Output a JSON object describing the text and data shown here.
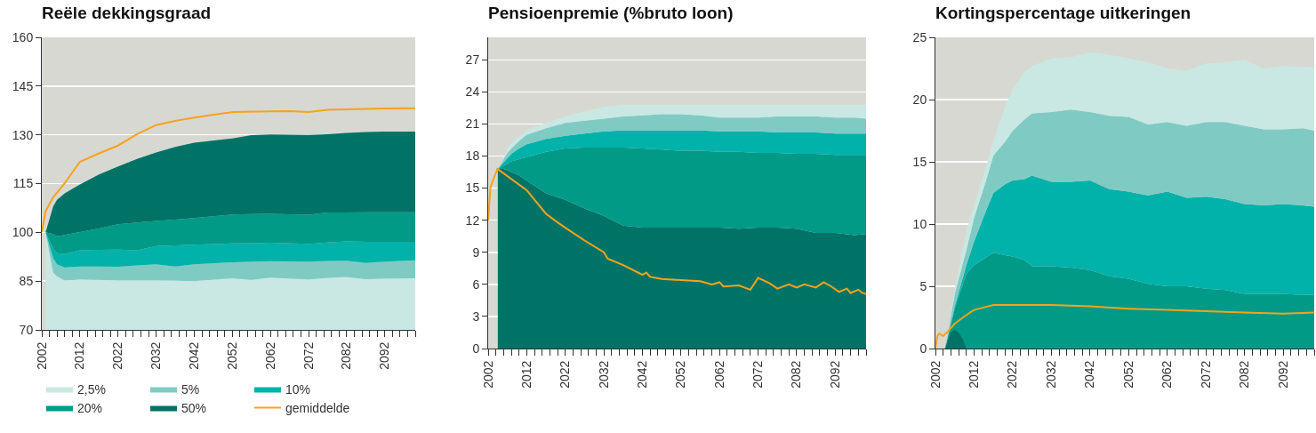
{
  "chart_data": [
    {
      "type": "area",
      "title": "Reële dekkingsgraad",
      "legend": "bottom left",
      "grid": "y",
      "xlim": [
        2002,
        2100
      ],
      "ylim": [
        70,
        160
      ],
      "yticks": [
        70,
        85,
        100,
        115,
        130,
        145,
        160
      ],
      "xticks": [
        2002,
        {
          "value": 2004,
          "label": null
        },
        {
          "value": 2006,
          "label": null
        },
        {
          "value": 2008,
          "label": null
        },
        {
          "value": 2010,
          "label": null
        },
        2012,
        {
          "value": 2014,
          "label": null
        },
        {
          "value": 2016,
          "label": null
        },
        {
          "value": 2018,
          "label": null
        },
        {
          "value": 2020,
          "label": null
        },
        2022,
        {
          "value": 2024,
          "label": null
        },
        {
          "value": 2026,
          "label": null
        },
        {
          "value": 2028,
          "label": null
        },
        {
          "value": 2030,
          "label": null
        },
        2032,
        {
          "value": 2034,
          "label": null
        },
        {
          "value": 2036,
          "label": null
        },
        {
          "value": 2038,
          "label": null
        },
        {
          "value": 2040,
          "label": null
        },
        2042,
        {
          "value": 2044,
          "label": null
        },
        {
          "value": 2046,
          "label": null
        },
        {
          "value": 2048,
          "label": null
        },
        {
          "value": 2050,
          "label": null
        },
        2052,
        {
          "value": 2054,
          "label": null
        },
        {
          "value": 2056,
          "label": null
        },
        {
          "value": 2058,
          "label": null
        },
        {
          "value": 2060,
          "label": null
        },
        2062,
        {
          "value": 2064,
          "label": null
        },
        {
          "value": 2066,
          "label": null
        },
        {
          "value": 2068,
          "label": null
        },
        {
          "value": 2070,
          "label": null
        },
        2072,
        {
          "value": 2074,
          "label": null
        },
        {
          "value": 2076,
          "label": null
        },
        {
          "value": 2078,
          "label": null
        },
        {
          "value": 2080,
          "label": null
        },
        2082,
        {
          "value": 2084,
          "label": null
        },
        {
          "value": 2086,
          "label": null
        },
        {
          "value": 2088,
          "label": null
        },
        {
          "value": 2090,
          "label": null
        },
        2092,
        {
          "value": 2094,
          "label": null
        },
        {
          "value": 2096,
          "label": null
        },
        {
          "value": 2098,
          "label": null
        },
        {
          "value": 2100,
          "label": null
        }
      ],
      "x": [
        2003,
        2005,
        2006,
        2008,
        2012,
        2017,
        2022,
        2027,
        2032,
        2037,
        2042,
        2052,
        2057,
        2062,
        2072,
        2077,
        2082,
        2087,
        2092,
        2100
      ],
      "series": [
        {
          "name": "2,5%",
          "color": "#c9e8e3",
          "values": [
            100,
            87.6,
            86.5,
            85.2,
            85.5,
            85.4,
            85.2,
            85.2,
            85.2,
            85.1,
            85,
            85.9,
            85.4,
            86.1,
            85.5,
            86,
            86.3,
            85.6,
            85.8,
            85.9
          ]
        },
        {
          "name": "5%",
          "color": "#7fcbc4",
          "values": [
            100,
            92,
            90.2,
            89.2,
            89.5,
            89.5,
            89.4,
            89.8,
            90.2,
            89.5,
            90.2,
            90.8,
            91,
            91.1,
            91,
            91.2,
            91.3,
            90.6,
            91,
            91.4
          ]
        },
        {
          "name": "10%",
          "color": "#00b2a9",
          "values": [
            100,
            95,
            93.6,
            93.4,
            94.5,
            94.6,
            94.7,
            94.5,
            95.8,
            96,
            96.2,
            96.6,
            96.7,
            96.8,
            96.5,
            96.9,
            97.2,
            97.1,
            97.1,
            97.1
          ]
        },
        {
          "name": "20%",
          "color": "#009a87",
          "values": [
            100,
            99.5,
            98.8,
            99.2,
            100.1,
            101.2,
            102.5,
            103,
            103.5,
            103.9,
            104.4,
            105.5,
            105.6,
            105.7,
            105.4,
            106.1,
            106.1,
            106.2,
            106.2,
            106.2
          ]
        },
        {
          "name": "50%",
          "color": "#007367",
          "values": [
            100,
            108,
            110,
            112,
            114.7,
            117.8,
            120.3,
            122.6,
            124.6,
            126.3,
            127.6,
            128.9,
            129.9,
            130.1,
            130,
            130.2,
            130.6,
            130.9,
            131,
            131
          ]
        },
        {
          "name": "gemiddelde",
          "type": "line",
          "color": "#f5a31a",
          "x": [
            2002,
            2003,
            2005,
            2008,
            2012,
            2017,
            2022,
            2027,
            2032,
            2037,
            2042,
            2052,
            2062,
            2067,
            2072,
            2077,
            2092,
            2100
          ],
          "values": [
            100,
            106.5,
            110.8,
            115.1,
            121.7,
            124.3,
            126.7,
            130.2,
            133,
            134.3,
            135.3,
            137,
            137.2,
            137.3,
            137,
            137.7,
            138.1,
            138.2
          ]
        }
      ]
    },
    {
      "type": "area",
      "title": "Pensioenpremie (%bruto loon)",
      "grid": "y",
      "xlim": [
        2002,
        2100
      ],
      "ylim": [
        0,
        29.1
      ],
      "yticks": [
        0,
        3,
        6,
        9,
        12,
        15,
        18,
        21,
        24,
        27
      ],
      "xticks": [
        2002,
        {
          "value": 2004,
          "label": null
        },
        {
          "value": 2006,
          "label": null
        },
        {
          "value": 2008,
          "label": null
        },
        {
          "value": 2010,
          "label": null
        },
        2012,
        {
          "value": 2014,
          "label": null
        },
        {
          "value": 2016,
          "label": null
        },
        {
          "value": 2018,
          "label": null
        },
        {
          "value": 2020,
          "label": null
        },
        2022,
        {
          "value": 2024,
          "label": null
        },
        {
          "value": 2026,
          "label": null
        },
        {
          "value": 2028,
          "label": null
        },
        {
          "value": 2030,
          "label": null
        },
        2032,
        {
          "value": 2034,
          "label": null
        },
        {
          "value": 2036,
          "label": null
        },
        {
          "value": 2038,
          "label": null
        },
        {
          "value": 2040,
          "label": null
        },
        2042,
        {
          "value": 2044,
          "label": null
        },
        {
          "value": 2046,
          "label": null
        },
        {
          "value": 2048,
          "label": null
        },
        {
          "value": 2050,
          "label": null
        },
        2052,
        {
          "value": 2054,
          "label": null
        },
        {
          "value": 2056,
          "label": null
        },
        {
          "value": 2058,
          "label": null
        },
        {
          "value": 2060,
          "label": null
        },
        2062,
        {
          "value": 2064,
          "label": null
        },
        {
          "value": 2066,
          "label": null
        },
        {
          "value": 2068,
          "label": null
        },
        {
          "value": 2070,
          "label": null
        },
        2072,
        {
          "value": 2074,
          "label": null
        },
        {
          "value": 2076,
          "label": null
        },
        {
          "value": 2078,
          "label": null
        },
        {
          "value": 2080,
          "label": null
        },
        2082,
        {
          "value": 2084,
          "label": null
        },
        {
          "value": 2086,
          "label": null
        },
        {
          "value": 2088,
          "label": null
        },
        {
          "value": 2090,
          "label": null
        },
        2092,
        {
          "value": 2094,
          "label": null
        },
        {
          "value": 2096,
          "label": null
        },
        {
          "value": 2098,
          "label": null
        },
        {
          "value": 2100,
          "label": null
        }
      ],
      "x": [
        2004.5,
        2006,
        2007,
        2008,
        2010,
        2012,
        2017,
        2022,
        2027,
        2032,
        2037,
        2042,
        2047,
        2052,
        2057,
        2062,
        2067,
        2072,
        2077,
        2082,
        2087,
        2092,
        2097,
        2100
      ],
      "series": [
        {
          "color": "#007367",
          "values": [
            16.8,
            16.8,
            16.7,
            16.5,
            16.2,
            15.7,
            14.5,
            13.9,
            13.1,
            12.4,
            11.5,
            11.3,
            11.3,
            11.3,
            11.3,
            11.3,
            11.2,
            11.3,
            11.3,
            11.2,
            10.8,
            10.8,
            10.6,
            10.7
          ]
        },
        {
          "color": "#009a87",
          "values": [
            16.8,
            17.1,
            17.3,
            17.5,
            17.7,
            17.9,
            18.4,
            18.7,
            18.8,
            18.8,
            18.8,
            18.7,
            18.6,
            18.5,
            18.5,
            18.4,
            18.4,
            18.3,
            18.3,
            18.2,
            18.2,
            18.1,
            18.1,
            18.1
          ]
        },
        {
          "color": "#00b2a9",
          "values": [
            16.8,
            17.4,
            17.8,
            18.2,
            18.7,
            19.1,
            19.6,
            19.9,
            20.1,
            20.3,
            20.4,
            20.4,
            20.4,
            20.4,
            20.4,
            20.3,
            20.3,
            20.3,
            20.2,
            20.2,
            20.2,
            20.1,
            20.1,
            20.1
          ]
        },
        {
          "color": "#7fcbc4",
          "values": [
            16.8,
            17.7,
            18.3,
            18.7,
            19.4,
            20,
            20.6,
            21.1,
            21.3,
            21.5,
            21.7,
            21.8,
            21.9,
            21.9,
            21.8,
            21.6,
            21.6,
            21.6,
            21.7,
            21.7,
            21.7,
            21.6,
            21.6,
            21.5
          ]
        },
        {
          "color": "#c9e8e3",
          "values": [
            16.8,
            17.9,
            18.7,
            19.2,
            19.8,
            20.4,
            21.1,
            21.7,
            22.2,
            22.6,
            22.8,
            22.8,
            22.8,
            22.8,
            22.8,
            22.8,
            22.8,
            22.8,
            22.8,
            22.8,
            22.8,
            22.8,
            22.8,
            22.8
          ]
        },
        {
          "type": "line",
          "color": "#f5a31a",
          "x": [
            2002,
            2002.6,
            2004.4,
            2012,
            2017,
            2020,
            2022,
            2027,
            2032,
            2033,
            2037,
            2042,
            2043,
            2044,
            2047,
            2052,
            2057,
            2060,
            2062,
            2063,
            2067,
            2070,
            2072,
            2075,
            2077,
            2080,
            2082,
            2084,
            2087,
            2089,
            2091,
            2093,
            2095,
            2096,
            2098,
            2099,
            2100
          ],
          "values": [
            12,
            15.1,
            16.8,
            14.8,
            12.6,
            11.8,
            11.3,
            10.1,
            9,
            8.4,
            7.8,
            6.9,
            7.1,
            6.7,
            6.5,
            6.4,
            6.3,
            6,
            6.2,
            5.8,
            5.9,
            5.5,
            6.6,
            6.1,
            5.6,
            6,
            5.7,
            6,
            5.7,
            6.2,
            5.8,
            5.3,
            5.6,
            5.2,
            5.5,
            5.2,
            5.1
          ]
        }
      ]
    },
    {
      "type": "area",
      "title": "Kortingspercentage uitkeringen",
      "grid": "y",
      "xlim": [
        2002,
        2100
      ],
      "ylim": [
        0,
        25
      ],
      "yticks": [
        0,
        5,
        10,
        15,
        20,
        25
      ],
      "xticks": [
        2002,
        {
          "value": 2004,
          "label": null
        },
        {
          "value": 2006,
          "label": null
        },
        {
          "value": 2008,
          "label": null
        },
        {
          "value": 2010,
          "label": null
        },
        2012,
        {
          "value": 2014,
          "label": null
        },
        {
          "value": 2016,
          "label": null
        },
        {
          "value": 2018,
          "label": null
        },
        {
          "value": 2020,
          "label": null
        },
        2022,
        {
          "value": 2024,
          "label": null
        },
        {
          "value": 2026,
          "label": null
        },
        {
          "value": 2028,
          "label": null
        },
        {
          "value": 2030,
          "label": null
        },
        2032,
        {
          "value": 2034,
          "label": null
        },
        {
          "value": 2036,
          "label": null
        },
        {
          "value": 2038,
          "label": null
        },
        {
          "value": 2040,
          "label": null
        },
        2042,
        {
          "value": 2044,
          "label": null
        },
        {
          "value": 2046,
          "label": null
        },
        {
          "value": 2048,
          "label": null
        },
        {
          "value": 2050,
          "label": null
        },
        2052,
        {
          "value": 2054,
          "label": null
        },
        {
          "value": 2056,
          "label": null
        },
        {
          "value": 2058,
          "label": null
        },
        {
          "value": 2060,
          "label": null
        },
        2062,
        {
          "value": 2064,
          "label": null
        },
        {
          "value": 2066,
          "label": null
        },
        {
          "value": 2068,
          "label": null
        },
        {
          "value": 2070,
          "label": null
        },
        2072,
        {
          "value": 2074,
          "label": null
        },
        {
          "value": 2076,
          "label": null
        },
        {
          "value": 2078,
          "label": null
        },
        {
          "value": 2080,
          "label": null
        },
        2082,
        {
          "value": 2084,
          "label": null
        },
        {
          "value": 2086,
          "label": null
        },
        {
          "value": 2088,
          "label": null
        },
        {
          "value": 2090,
          "label": null
        },
        2092,
        {
          "value": 2094,
          "label": null
        },
        {
          "value": 2096,
          "label": null
        },
        {
          "value": 2098,
          "label": null
        },
        {
          "value": 2100,
          "label": null
        }
      ],
      "x": [
        2004.5,
        2007,
        2010,
        2012,
        2015,
        2017,
        2020,
        2022,
        2025,
        2027,
        2032,
        2037,
        2042,
        2047,
        2052,
        2057,
        2062,
        2067,
        2072,
        2077,
        2082,
        2087,
        2092,
        2097,
        2100
      ],
      "series": [
        {
          "color": "#009a87",
          "values": [
            0,
            3.2,
            6,
            6.7,
            7.3,
            7.7,
            7.5,
            7.4,
            7.1,
            6.6,
            6.6,
            6.5,
            6.3,
            5.8,
            5.6,
            5.2,
            5,
            5,
            4.8,
            4.7,
            4.4,
            4.4,
            4.4,
            4.3,
            4.3
          ]
        },
        {
          "color": "#00b2a9",
          "values": [
            0,
            3.4,
            6.7,
            8.6,
            11,
            12.5,
            13.2,
            13.5,
            13.6,
            13.9,
            13.4,
            13.4,
            13.5,
            12.8,
            12.6,
            12.3,
            12.6,
            12.1,
            12.2,
            12,
            11.6,
            11.5,
            11.6,
            11.5,
            11.4
          ]
        },
        {
          "color": "#7fcbc4",
          "values": [
            0,
            4.4,
            7.9,
            10.5,
            13.4,
            15.5,
            16.6,
            17.5,
            18.4,
            18.9,
            19,
            19.2,
            19,
            18.7,
            18.6,
            18,
            18.2,
            17.9,
            18.2,
            18.2,
            17.9,
            17.6,
            17.6,
            17.7,
            17.5
          ]
        },
        {
          "color": "#c9e8e3",
          "values": [
            0,
            4.8,
            9.4,
            11.5,
            14.5,
            16.7,
            19.4,
            20.8,
            22.2,
            22.7,
            23.3,
            23.4,
            23.8,
            23.6,
            23.3,
            23,
            22.5,
            22.3,
            22.9,
            23,
            23.2,
            22.5,
            22.7,
            22.6,
            22.6
          ]
        },
        {
          "color": "#007367",
          "x": [
            2004.5,
            2006,
            2007,
            2008,
            2009,
            2010
          ],
          "values": [
            0,
            1.3,
            1.5,
            1.3,
            0.8,
            0
          ]
        },
        {
          "type": "line",
          "color": "#f5a31a",
          "x": [
            2002,
            2002.5,
            2003,
            2004,
            2005,
            2007,
            2010,
            2012,
            2017,
            2022,
            2032,
            2042,
            2052,
            2062,
            2072,
            2082,
            2092,
            2100
          ],
          "values": [
            0,
            1,
            1.2,
            1,
            1.3,
            2,
            2.7,
            3.1,
            3.5,
            3.5,
            3.5,
            3.4,
            3.2,
            3.1,
            3,
            2.9,
            2.8,
            2.9
          ]
        }
      ]
    }
  ]
}
